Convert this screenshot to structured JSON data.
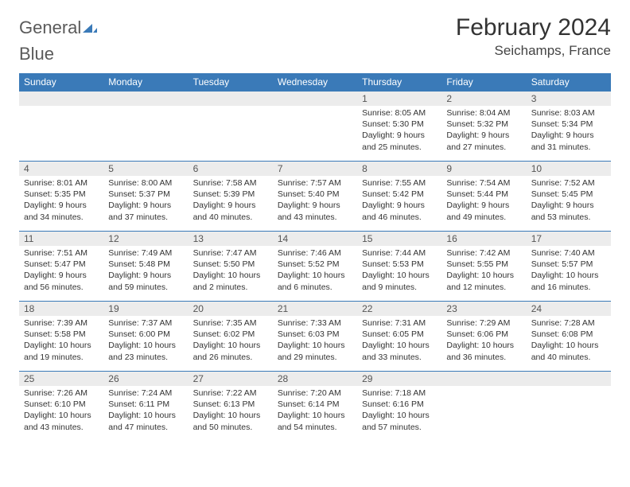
{
  "brand": {
    "general": "General",
    "blue": "Blue"
  },
  "title": "February 2024",
  "location": "Seichamps, France",
  "colors": {
    "header_bg": "#3a7ab8",
    "header_fg": "#ffffff",
    "daynum_bg": "#ececec",
    "row_border": "#3a7ab8",
    "logo_gray": "#5a5a5a",
    "logo_blue": "#3a7ab8"
  },
  "weekdays": [
    "Sunday",
    "Monday",
    "Tuesday",
    "Wednesday",
    "Thursday",
    "Friday",
    "Saturday"
  ],
  "weeks": [
    [
      {
        "day": "",
        "sunrise": "",
        "sunset": "",
        "daylight": ""
      },
      {
        "day": "",
        "sunrise": "",
        "sunset": "",
        "daylight": ""
      },
      {
        "day": "",
        "sunrise": "",
        "sunset": "",
        "daylight": ""
      },
      {
        "day": "",
        "sunrise": "",
        "sunset": "",
        "daylight": ""
      },
      {
        "day": "1",
        "sunrise": "Sunrise: 8:05 AM",
        "sunset": "Sunset: 5:30 PM",
        "daylight": "Daylight: 9 hours and 25 minutes."
      },
      {
        "day": "2",
        "sunrise": "Sunrise: 8:04 AM",
        "sunset": "Sunset: 5:32 PM",
        "daylight": "Daylight: 9 hours and 27 minutes."
      },
      {
        "day": "3",
        "sunrise": "Sunrise: 8:03 AM",
        "sunset": "Sunset: 5:34 PM",
        "daylight": "Daylight: 9 hours and 31 minutes."
      }
    ],
    [
      {
        "day": "4",
        "sunrise": "Sunrise: 8:01 AM",
        "sunset": "Sunset: 5:35 PM",
        "daylight": "Daylight: 9 hours and 34 minutes."
      },
      {
        "day": "5",
        "sunrise": "Sunrise: 8:00 AM",
        "sunset": "Sunset: 5:37 PM",
        "daylight": "Daylight: 9 hours and 37 minutes."
      },
      {
        "day": "6",
        "sunrise": "Sunrise: 7:58 AM",
        "sunset": "Sunset: 5:39 PM",
        "daylight": "Daylight: 9 hours and 40 minutes."
      },
      {
        "day": "7",
        "sunrise": "Sunrise: 7:57 AM",
        "sunset": "Sunset: 5:40 PM",
        "daylight": "Daylight: 9 hours and 43 minutes."
      },
      {
        "day": "8",
        "sunrise": "Sunrise: 7:55 AM",
        "sunset": "Sunset: 5:42 PM",
        "daylight": "Daylight: 9 hours and 46 minutes."
      },
      {
        "day": "9",
        "sunrise": "Sunrise: 7:54 AM",
        "sunset": "Sunset: 5:44 PM",
        "daylight": "Daylight: 9 hours and 49 minutes."
      },
      {
        "day": "10",
        "sunrise": "Sunrise: 7:52 AM",
        "sunset": "Sunset: 5:45 PM",
        "daylight": "Daylight: 9 hours and 53 minutes."
      }
    ],
    [
      {
        "day": "11",
        "sunrise": "Sunrise: 7:51 AM",
        "sunset": "Sunset: 5:47 PM",
        "daylight": "Daylight: 9 hours and 56 minutes."
      },
      {
        "day": "12",
        "sunrise": "Sunrise: 7:49 AM",
        "sunset": "Sunset: 5:48 PM",
        "daylight": "Daylight: 9 hours and 59 minutes."
      },
      {
        "day": "13",
        "sunrise": "Sunrise: 7:47 AM",
        "sunset": "Sunset: 5:50 PM",
        "daylight": "Daylight: 10 hours and 2 minutes."
      },
      {
        "day": "14",
        "sunrise": "Sunrise: 7:46 AM",
        "sunset": "Sunset: 5:52 PM",
        "daylight": "Daylight: 10 hours and 6 minutes."
      },
      {
        "day": "15",
        "sunrise": "Sunrise: 7:44 AM",
        "sunset": "Sunset: 5:53 PM",
        "daylight": "Daylight: 10 hours and 9 minutes."
      },
      {
        "day": "16",
        "sunrise": "Sunrise: 7:42 AM",
        "sunset": "Sunset: 5:55 PM",
        "daylight": "Daylight: 10 hours and 12 minutes."
      },
      {
        "day": "17",
        "sunrise": "Sunrise: 7:40 AM",
        "sunset": "Sunset: 5:57 PM",
        "daylight": "Daylight: 10 hours and 16 minutes."
      }
    ],
    [
      {
        "day": "18",
        "sunrise": "Sunrise: 7:39 AM",
        "sunset": "Sunset: 5:58 PM",
        "daylight": "Daylight: 10 hours and 19 minutes."
      },
      {
        "day": "19",
        "sunrise": "Sunrise: 7:37 AM",
        "sunset": "Sunset: 6:00 PM",
        "daylight": "Daylight: 10 hours and 23 minutes."
      },
      {
        "day": "20",
        "sunrise": "Sunrise: 7:35 AM",
        "sunset": "Sunset: 6:02 PM",
        "daylight": "Daylight: 10 hours and 26 minutes."
      },
      {
        "day": "21",
        "sunrise": "Sunrise: 7:33 AM",
        "sunset": "Sunset: 6:03 PM",
        "daylight": "Daylight: 10 hours and 29 minutes."
      },
      {
        "day": "22",
        "sunrise": "Sunrise: 7:31 AM",
        "sunset": "Sunset: 6:05 PM",
        "daylight": "Daylight: 10 hours and 33 minutes."
      },
      {
        "day": "23",
        "sunrise": "Sunrise: 7:29 AM",
        "sunset": "Sunset: 6:06 PM",
        "daylight": "Daylight: 10 hours and 36 minutes."
      },
      {
        "day": "24",
        "sunrise": "Sunrise: 7:28 AM",
        "sunset": "Sunset: 6:08 PM",
        "daylight": "Daylight: 10 hours and 40 minutes."
      }
    ],
    [
      {
        "day": "25",
        "sunrise": "Sunrise: 7:26 AM",
        "sunset": "Sunset: 6:10 PM",
        "daylight": "Daylight: 10 hours and 43 minutes."
      },
      {
        "day": "26",
        "sunrise": "Sunrise: 7:24 AM",
        "sunset": "Sunset: 6:11 PM",
        "daylight": "Daylight: 10 hours and 47 minutes."
      },
      {
        "day": "27",
        "sunrise": "Sunrise: 7:22 AM",
        "sunset": "Sunset: 6:13 PM",
        "daylight": "Daylight: 10 hours and 50 minutes."
      },
      {
        "day": "28",
        "sunrise": "Sunrise: 7:20 AM",
        "sunset": "Sunset: 6:14 PM",
        "daylight": "Daylight: 10 hours and 54 minutes."
      },
      {
        "day": "29",
        "sunrise": "Sunrise: 7:18 AM",
        "sunset": "Sunset: 6:16 PM",
        "daylight": "Daylight: 10 hours and 57 minutes."
      },
      {
        "day": "",
        "sunrise": "",
        "sunset": "",
        "daylight": ""
      },
      {
        "day": "",
        "sunrise": "",
        "sunset": "",
        "daylight": ""
      }
    ]
  ]
}
